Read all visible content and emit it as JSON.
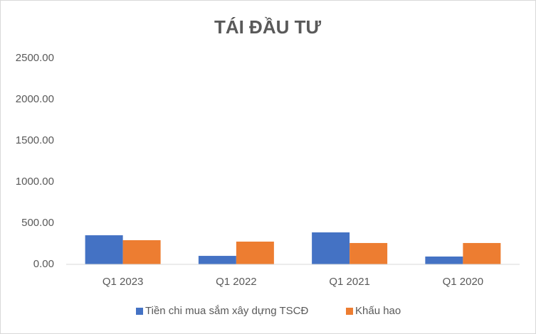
{
  "chart_data": {
    "type": "bar",
    "title": "TÁI ĐẦU TƯ",
    "categories": [
      "Q1 2023",
      "Q1 2022",
      "Q1 2021",
      "Q1 2020"
    ],
    "series": [
      {
        "name": "Tiền chi mua sắm xây dựng TSCĐ",
        "color": "#4472c4",
        "values": [
          353,
          103,
          388,
          95
        ]
      },
      {
        "name": "Khấu hao",
        "color": "#ed7d31",
        "values": [
          293,
          276,
          259,
          259
        ]
      }
    ],
    "ylim": [
      0,
      2500
    ],
    "yticks": [
      {
        "value": 0,
        "label": "0.00"
      },
      {
        "value": 500,
        "label": "500.00"
      },
      {
        "value": 1000,
        "label": "1000.00"
      },
      {
        "value": 1500,
        "label": "1500.00"
      },
      {
        "value": 2000,
        "label": "2000.00"
      },
      {
        "value": 2500,
        "label": "2500.00"
      }
    ],
    "grid": false,
    "legend": "bottom"
  }
}
